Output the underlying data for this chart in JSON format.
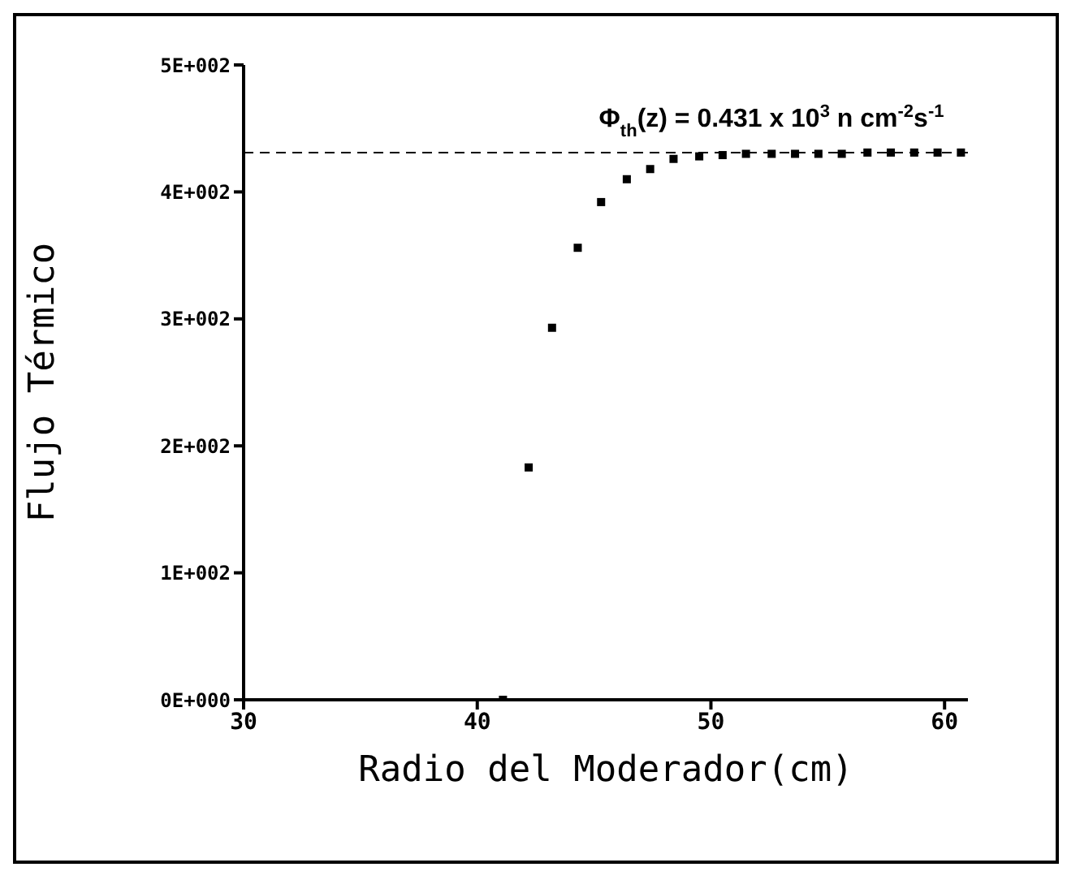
{
  "chart_data": {
    "type": "scatter",
    "xlabel": "Radio del Moderador(cm)",
    "ylabel": "Flujo Térmico",
    "x": [
      41.1,
      42.2,
      43.2,
      44.3,
      45.3,
      46.4,
      47.4,
      48.4,
      49.5,
      50.5,
      51.5,
      52.6,
      53.6,
      54.6,
      55.6,
      56.7,
      57.7,
      58.7,
      59.7,
      60.7
    ],
    "values": [
      0,
      183,
      293,
      356,
      392,
      410,
      418,
      426,
      428,
      429,
      430,
      430,
      430,
      430,
      430,
      431,
      431,
      431,
      431,
      431
    ],
    "color": "#000000",
    "marker": "square",
    "xlim": [
      30,
      61
    ],
    "xticks": [
      30,
      40,
      50,
      60
    ],
    "ylim": [
      0,
      500
    ],
    "yticks": [
      {
        "value": 0,
        "label": "0E+000"
      },
      {
        "value": 100,
        "label": "1E+002"
      },
      {
        "value": 200,
        "label": "2E+002"
      },
      {
        "value": 300,
        "label": "3E+002"
      },
      {
        "value": 400,
        "label": "4E+002"
      },
      {
        "value": 500,
        "label": "5E+002"
      }
    ],
    "ref_lines": [
      {
        "axis": "y",
        "value": 431,
        "color": "#000000",
        "line_style": "dashed"
      }
    ],
    "annotations": [
      "Φ$_{th}$(z) = 0.431 x 10$^{3}$ n cm$^{-2}$s$^{-1}$"
    ],
    "grid": false
  }
}
